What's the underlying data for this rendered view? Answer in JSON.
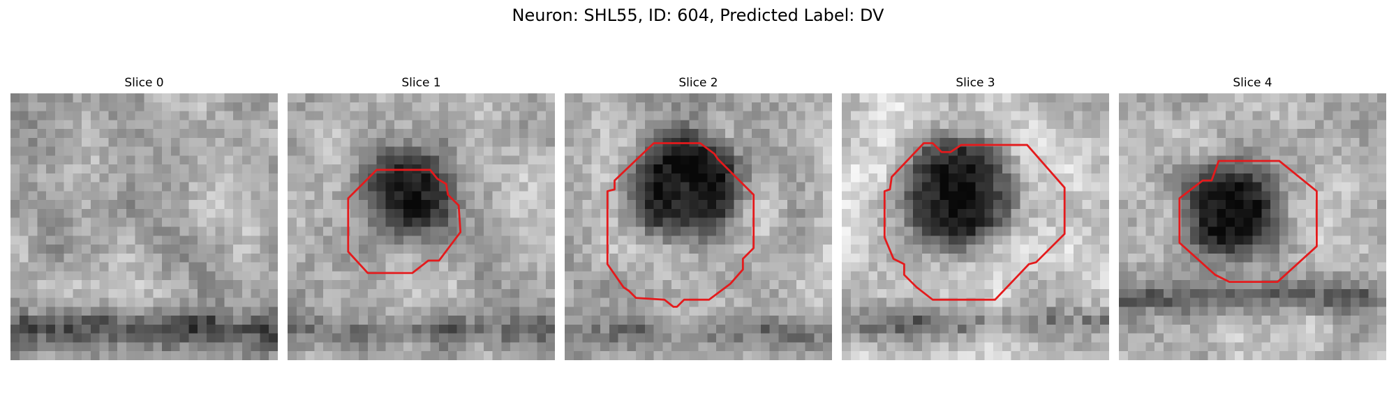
{
  "figure": {
    "title": "Neuron: SHL55, ID: 604, Predicted Label: DV"
  },
  "panels": [
    {
      "title": "Slice 0",
      "has_contour": false
    },
    {
      "title": "Slice 1",
      "has_contour": true
    },
    {
      "title": "Slice 2",
      "has_contour": true
    },
    {
      "title": "Slice 3",
      "has_contour": true
    },
    {
      "title": "Slice 4",
      "has_contour": true
    }
  ],
  "colors": {
    "contour": "#e41a1c",
    "background": "#ffffff"
  }
}
